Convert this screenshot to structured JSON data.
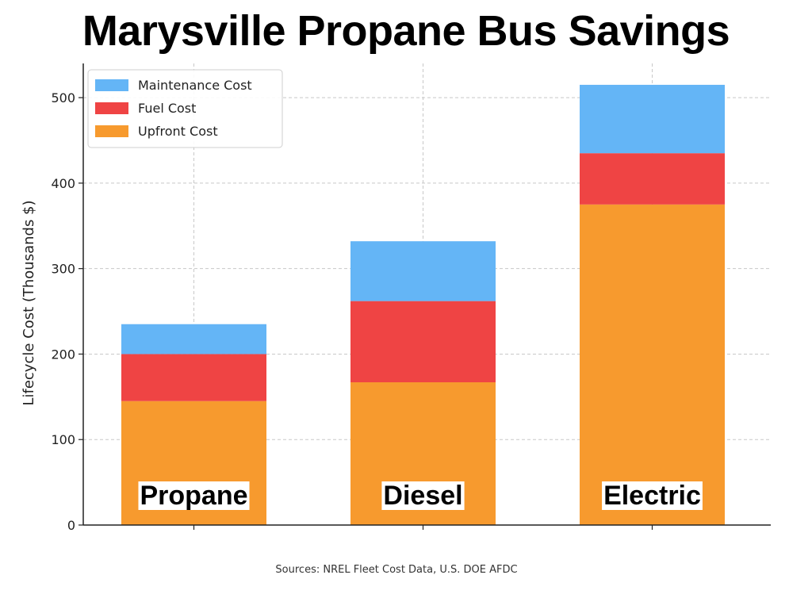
{
  "chart_data": {
    "type": "bar",
    "stacked": true,
    "title": "Marysville Propane Bus Savings",
    "ylabel": "Lifecycle Cost (Thousands $)",
    "xlabel": "",
    "ylim": [
      0,
      540
    ],
    "yticks": [
      0,
      100,
      200,
      300,
      400,
      500
    ],
    "grid": true,
    "legend_position": "top-left",
    "categories": [
      "Propane",
      "Diesel",
      "Electric"
    ],
    "series": [
      {
        "name": "Upfront Cost",
        "color": "#f79a2e",
        "values": [
          145,
          167,
          375
        ]
      },
      {
        "name": "Fuel Cost",
        "color": "#ef4444",
        "values": [
          55,
          95,
          60
        ]
      },
      {
        "name": "Maintenance Cost",
        "color": "#64b5f6",
        "values": [
          35,
          70,
          80
        ]
      }
    ],
    "legend_order": [
      "Maintenance Cost",
      "Fuel Cost",
      "Upfront Cost"
    ],
    "source": "Sources: NREL Fleet Cost Data, U.S. DOE AFDC"
  }
}
